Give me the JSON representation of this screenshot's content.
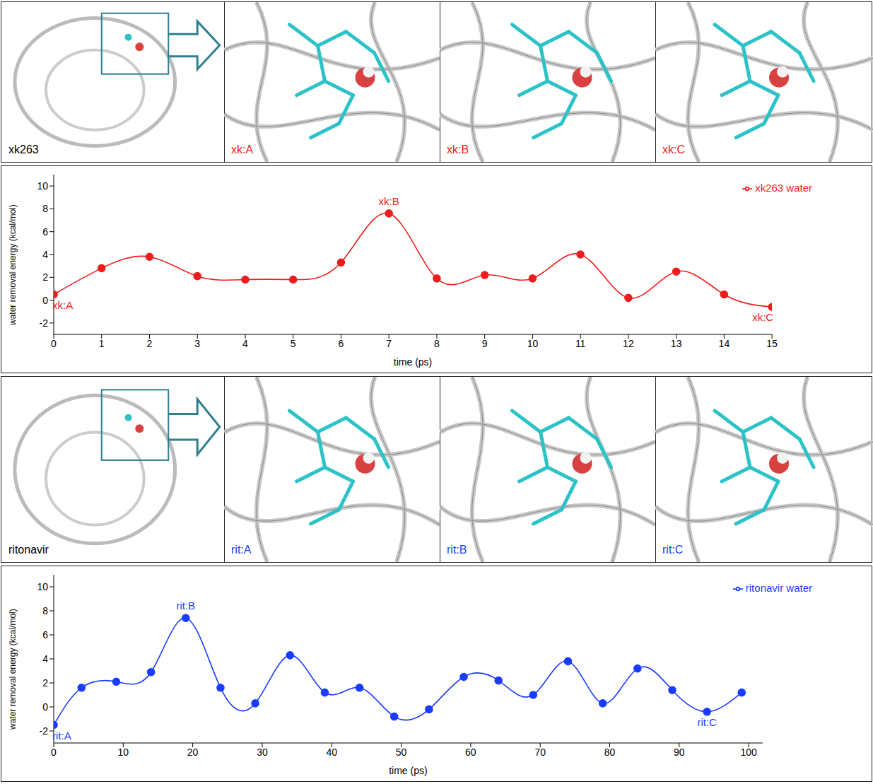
{
  "chart_data": [
    {
      "type": "line",
      "x_label": "time (ps)",
      "y_label": "water removal energy (kcal/mol)",
      "x": [
        0,
        1,
        2,
        3,
        4,
        5,
        6,
        7,
        8,
        9,
        10,
        11,
        12,
        13,
        14,
        15
      ],
      "series": [
        {
          "name": "xk263 water",
          "color": "#ee1c1c",
          "marker": "circle",
          "values": [
            0.5,
            2.8,
            3.8,
            2.1,
            1.8,
            1.8,
            3.3,
            7.6,
            1.9,
            2.2,
            1.9,
            4.0,
            0.2,
            2.5,
            0.5,
            -0.6
          ]
        }
      ],
      "xlim": [
        0,
        15
      ],
      "xticks": [
        0,
        1,
        2,
        3,
        4,
        5,
        6,
        7,
        8,
        9,
        10,
        11,
        12,
        13,
        14,
        15
      ],
      "ylim": [
        -3,
        11
      ],
      "yticks": [
        -2,
        0,
        2,
        4,
        6,
        8,
        10
      ],
      "legend": "top-right",
      "annotations": [
        {
          "x": 0,
          "text": "xk:A"
        },
        {
          "x": 7,
          "text": "xk:B"
        },
        {
          "x": 15,
          "text": "xk:C"
        }
      ]
    },
    {
      "type": "line",
      "x_label": "time (ps)",
      "y_label": "water removal energy (kcal/mol)",
      "x": [
        0,
        4,
        9,
        14,
        19,
        24,
        29,
        34,
        39,
        44,
        49,
        54,
        59,
        64,
        69,
        74,
        79,
        84,
        89,
        94,
        99
      ],
      "series": [
        {
          "name": "ritonavir water",
          "color": "#1a3cff",
          "marker": "circle",
          "values": [
            -1.5,
            1.6,
            2.1,
            2.9,
            7.4,
            1.6,
            0.3,
            4.3,
            1.2,
            1.6,
            -0.8,
            -0.2,
            2.5,
            2.2,
            1.0,
            3.8,
            0.3,
            3.2,
            1.4,
            -0.4,
            1.2
          ]
        }
      ],
      "xlim": [
        0,
        102
      ],
      "xticks": [
        0,
        10,
        20,
        30,
        40,
        50,
        60,
        70,
        80,
        90,
        100
      ],
      "ylim": [
        -3,
        11
      ],
      "yticks": [
        -2,
        0,
        2,
        4,
        6,
        8,
        10
      ],
      "legend": "top-right",
      "annotations": [
        {
          "x": 0,
          "text": "rit:A"
        },
        {
          "x": 19,
          "text": "rit:B"
        },
        {
          "x": 94,
          "text": "rit:C"
        }
      ]
    }
  ],
  "image_panels": [
    {
      "overview_label": "xk263",
      "snapshot_labels": [
        "xk:A",
        "xk:B",
        "xk:C"
      ],
      "color": "#ee1c1c"
    },
    {
      "overview_label": "ritonavir",
      "snapshot_labels": [
        "rit:A",
        "rit:B",
        "rit:C"
      ],
      "color": "#1a3cff"
    }
  ]
}
